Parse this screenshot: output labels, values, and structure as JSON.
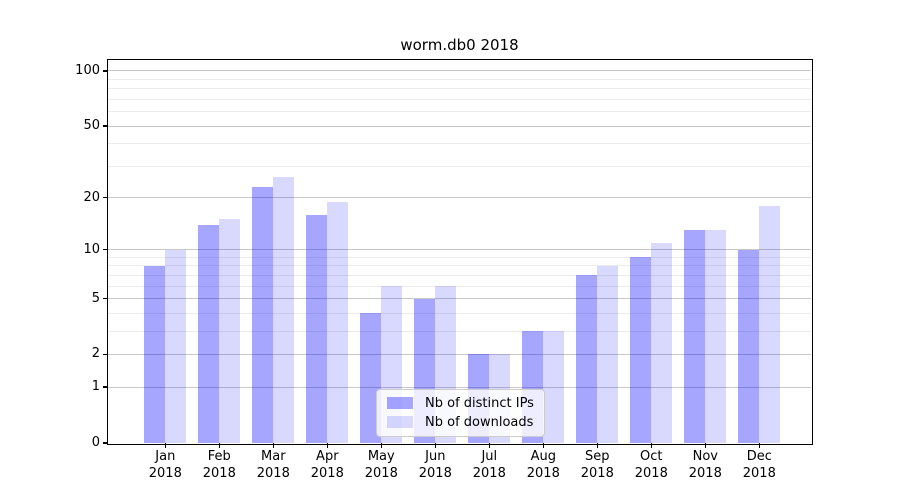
{
  "title": "worm.db0 2018",
  "chart_data": {
    "type": "bar",
    "title": "worm.db0 2018",
    "categories": [
      "Jan 2018",
      "Feb 2018",
      "Mar 2018",
      "Apr 2018",
      "May 2018",
      "Jun 2018",
      "Jul 2018",
      "Aug 2018",
      "Sep 2018",
      "Oct 2018",
      "Nov 2018",
      "Dec 2018"
    ],
    "month_labels": [
      "Jan",
      "Feb",
      "Mar",
      "Apr",
      "May",
      "Jun",
      "Jul",
      "Aug",
      "Sep",
      "Oct",
      "Nov",
      "Dec"
    ],
    "year_label": "2018",
    "series": [
      {
        "name": "Nb of distinct IPs",
        "fill": "#0000FF59",
        "values": [
          8,
          14,
          23,
          16,
          4,
          5,
          2,
          3,
          7,
          9,
          13,
          10
        ]
      },
      {
        "name": "Nb of downloads",
        "fill": "#0000FF26",
        "values": [
          10,
          15,
          26,
          19,
          6,
          6,
          2,
          3,
          8,
          11,
          13,
          18
        ]
      }
    ],
    "yscale": "log1p",
    "ylim": [
      0,
      114
    ],
    "y_major_ticks": [
      0,
      1,
      2,
      5,
      10,
      20,
      50,
      100
    ],
    "y_minor_ticks": [
      3,
      4,
      6,
      7,
      8,
      9,
      30,
      40,
      60,
      70,
      80,
      90
    ],
    "grid": true,
    "legend_position": "lower-center",
    "colors": {
      "major_grid": "#c8c8c8",
      "minor_grid": "#ebebeb",
      "spine": "#000000",
      "text": "#000000"
    }
  }
}
